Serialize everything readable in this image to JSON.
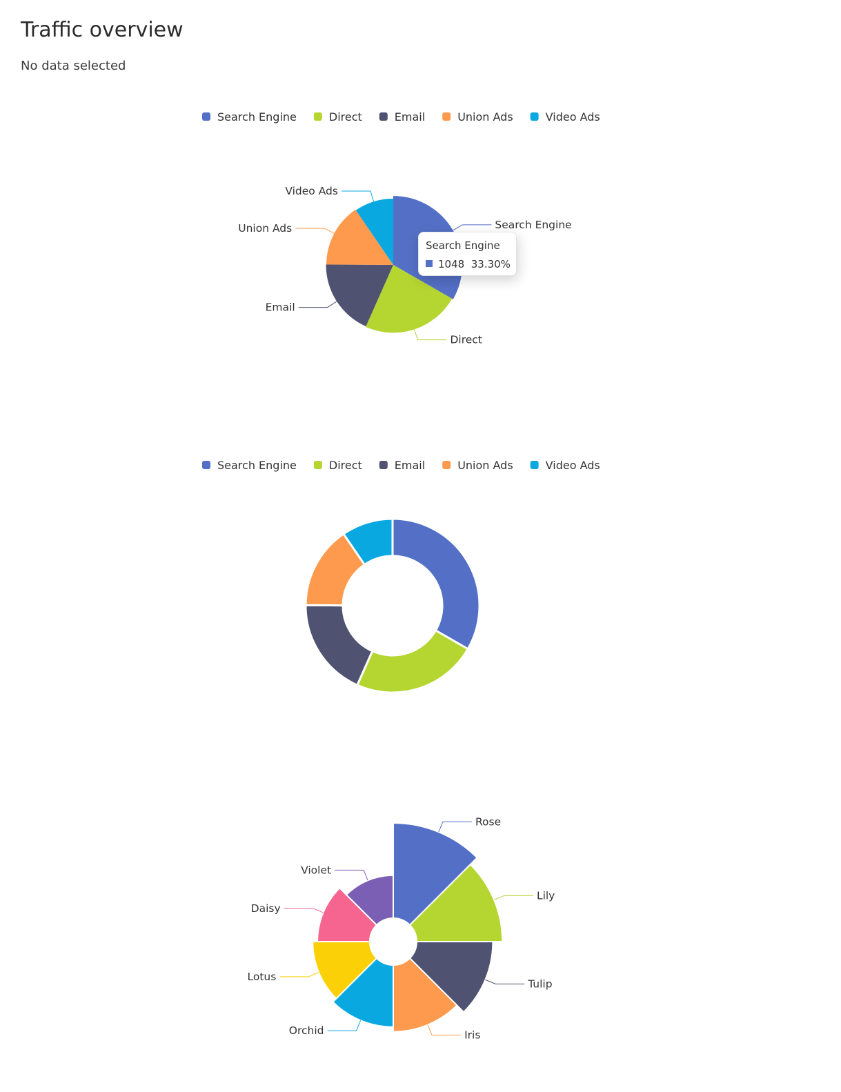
{
  "page": {
    "title": "Traffic overview",
    "status": "No data selected"
  },
  "tooltip": {
    "title": "Search Engine",
    "value": "1048",
    "percent": "33.30%",
    "color": "#5470c6"
  },
  "chart_data": [
    {
      "type": "pie",
      "variant": "rose-radius-ascending",
      "legend": [
        "Search Engine",
        "Direct",
        "Email",
        "Union Ads",
        "Video Ads"
      ],
      "legend_position": "top-center",
      "categories": [
        "Search Engine",
        "Direct",
        "Email",
        "Union Ads",
        "Video Ads"
      ],
      "values": [
        1048,
        735,
        580,
        484,
        300
      ],
      "colors": [
        "#5470c6",
        "#b5d531",
        "#4f5270",
        "#fe9a4d",
        "#0aa8e0"
      ],
      "labels_shown": true,
      "highlighted": "Search Engine"
    },
    {
      "type": "pie",
      "variant": "donut",
      "legend": [
        "Search Engine",
        "Direct",
        "Email",
        "Union Ads",
        "Video Ads"
      ],
      "legend_position": "top-center",
      "categories": [
        "Search Engine",
        "Direct",
        "Email",
        "Union Ads",
        "Video Ads"
      ],
      "values": [
        1048,
        735,
        580,
        484,
        300
      ],
      "colors": [
        "#5470c6",
        "#b5d531",
        "#4f5270",
        "#fe9a4d",
        "#0aa8e0"
      ],
      "labels_shown": false
    },
    {
      "type": "pie",
      "variant": "nightingale-rose",
      "categories": [
        "Rose",
        "Lily",
        "Tulip",
        "Iris",
        "Orchid",
        "Lotus",
        "Daisy",
        "Violet"
      ],
      "values": [
        40,
        36,
        32,
        28,
        26,
        24,
        22,
        18
      ],
      "colors": [
        "#5470c6",
        "#b5d531",
        "#4f5270",
        "#fe9a4d",
        "#0aa8e0",
        "#fcd006",
        "#f56590",
        "#7b5fb5"
      ],
      "labels_shown": true
    }
  ]
}
